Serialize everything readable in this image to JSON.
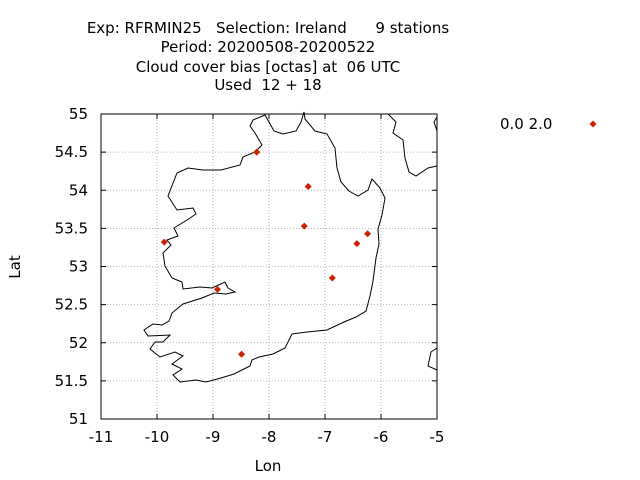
{
  "chart_data": {
    "type": "scatter",
    "title_lines": [
      "Exp: RFRMIN25   Selection: Ireland      9 stations",
      "Period: 20200508-20200522",
      "Cloud cover bias [octas] at  06 UTC",
      "Used  12 + 18"
    ],
    "xlabel": "Lon",
    "ylabel": "Lat",
    "xlim": [
      -11,
      -5
    ],
    "ylim": [
      51,
      55
    ],
    "xticks": [
      -11,
      -10,
      -9,
      -8,
      -7,
      -6,
      -5
    ],
    "yticks": [
      51,
      51.5,
      52,
      52.5,
      53,
      53.5,
      54,
      54.5,
      55
    ],
    "grid": true,
    "legend_position": "right",
    "series": [
      {
        "name": "0.0 2.0",
        "color": "#cc2200",
        "marker": "diamond",
        "points": [
          {
            "x": -8.22,
            "y": 54.5
          },
          {
            "x": -7.3,
            "y": 54.05
          },
          {
            "x": -7.37,
            "y": 53.53
          },
          {
            "x": -9.87,
            "y": 53.32
          },
          {
            "x": -6.24,
            "y": 53.43
          },
          {
            "x": -6.43,
            "y": 53.3
          },
          {
            "x": -6.87,
            "y": 52.85
          },
          {
            "x": -8.92,
            "y": 52.7
          },
          {
            "x": -8.49,
            "y": 51.85
          }
        ]
      }
    ]
  },
  "coastline_color": "#000000",
  "grid_color": "#a0a0a0"
}
